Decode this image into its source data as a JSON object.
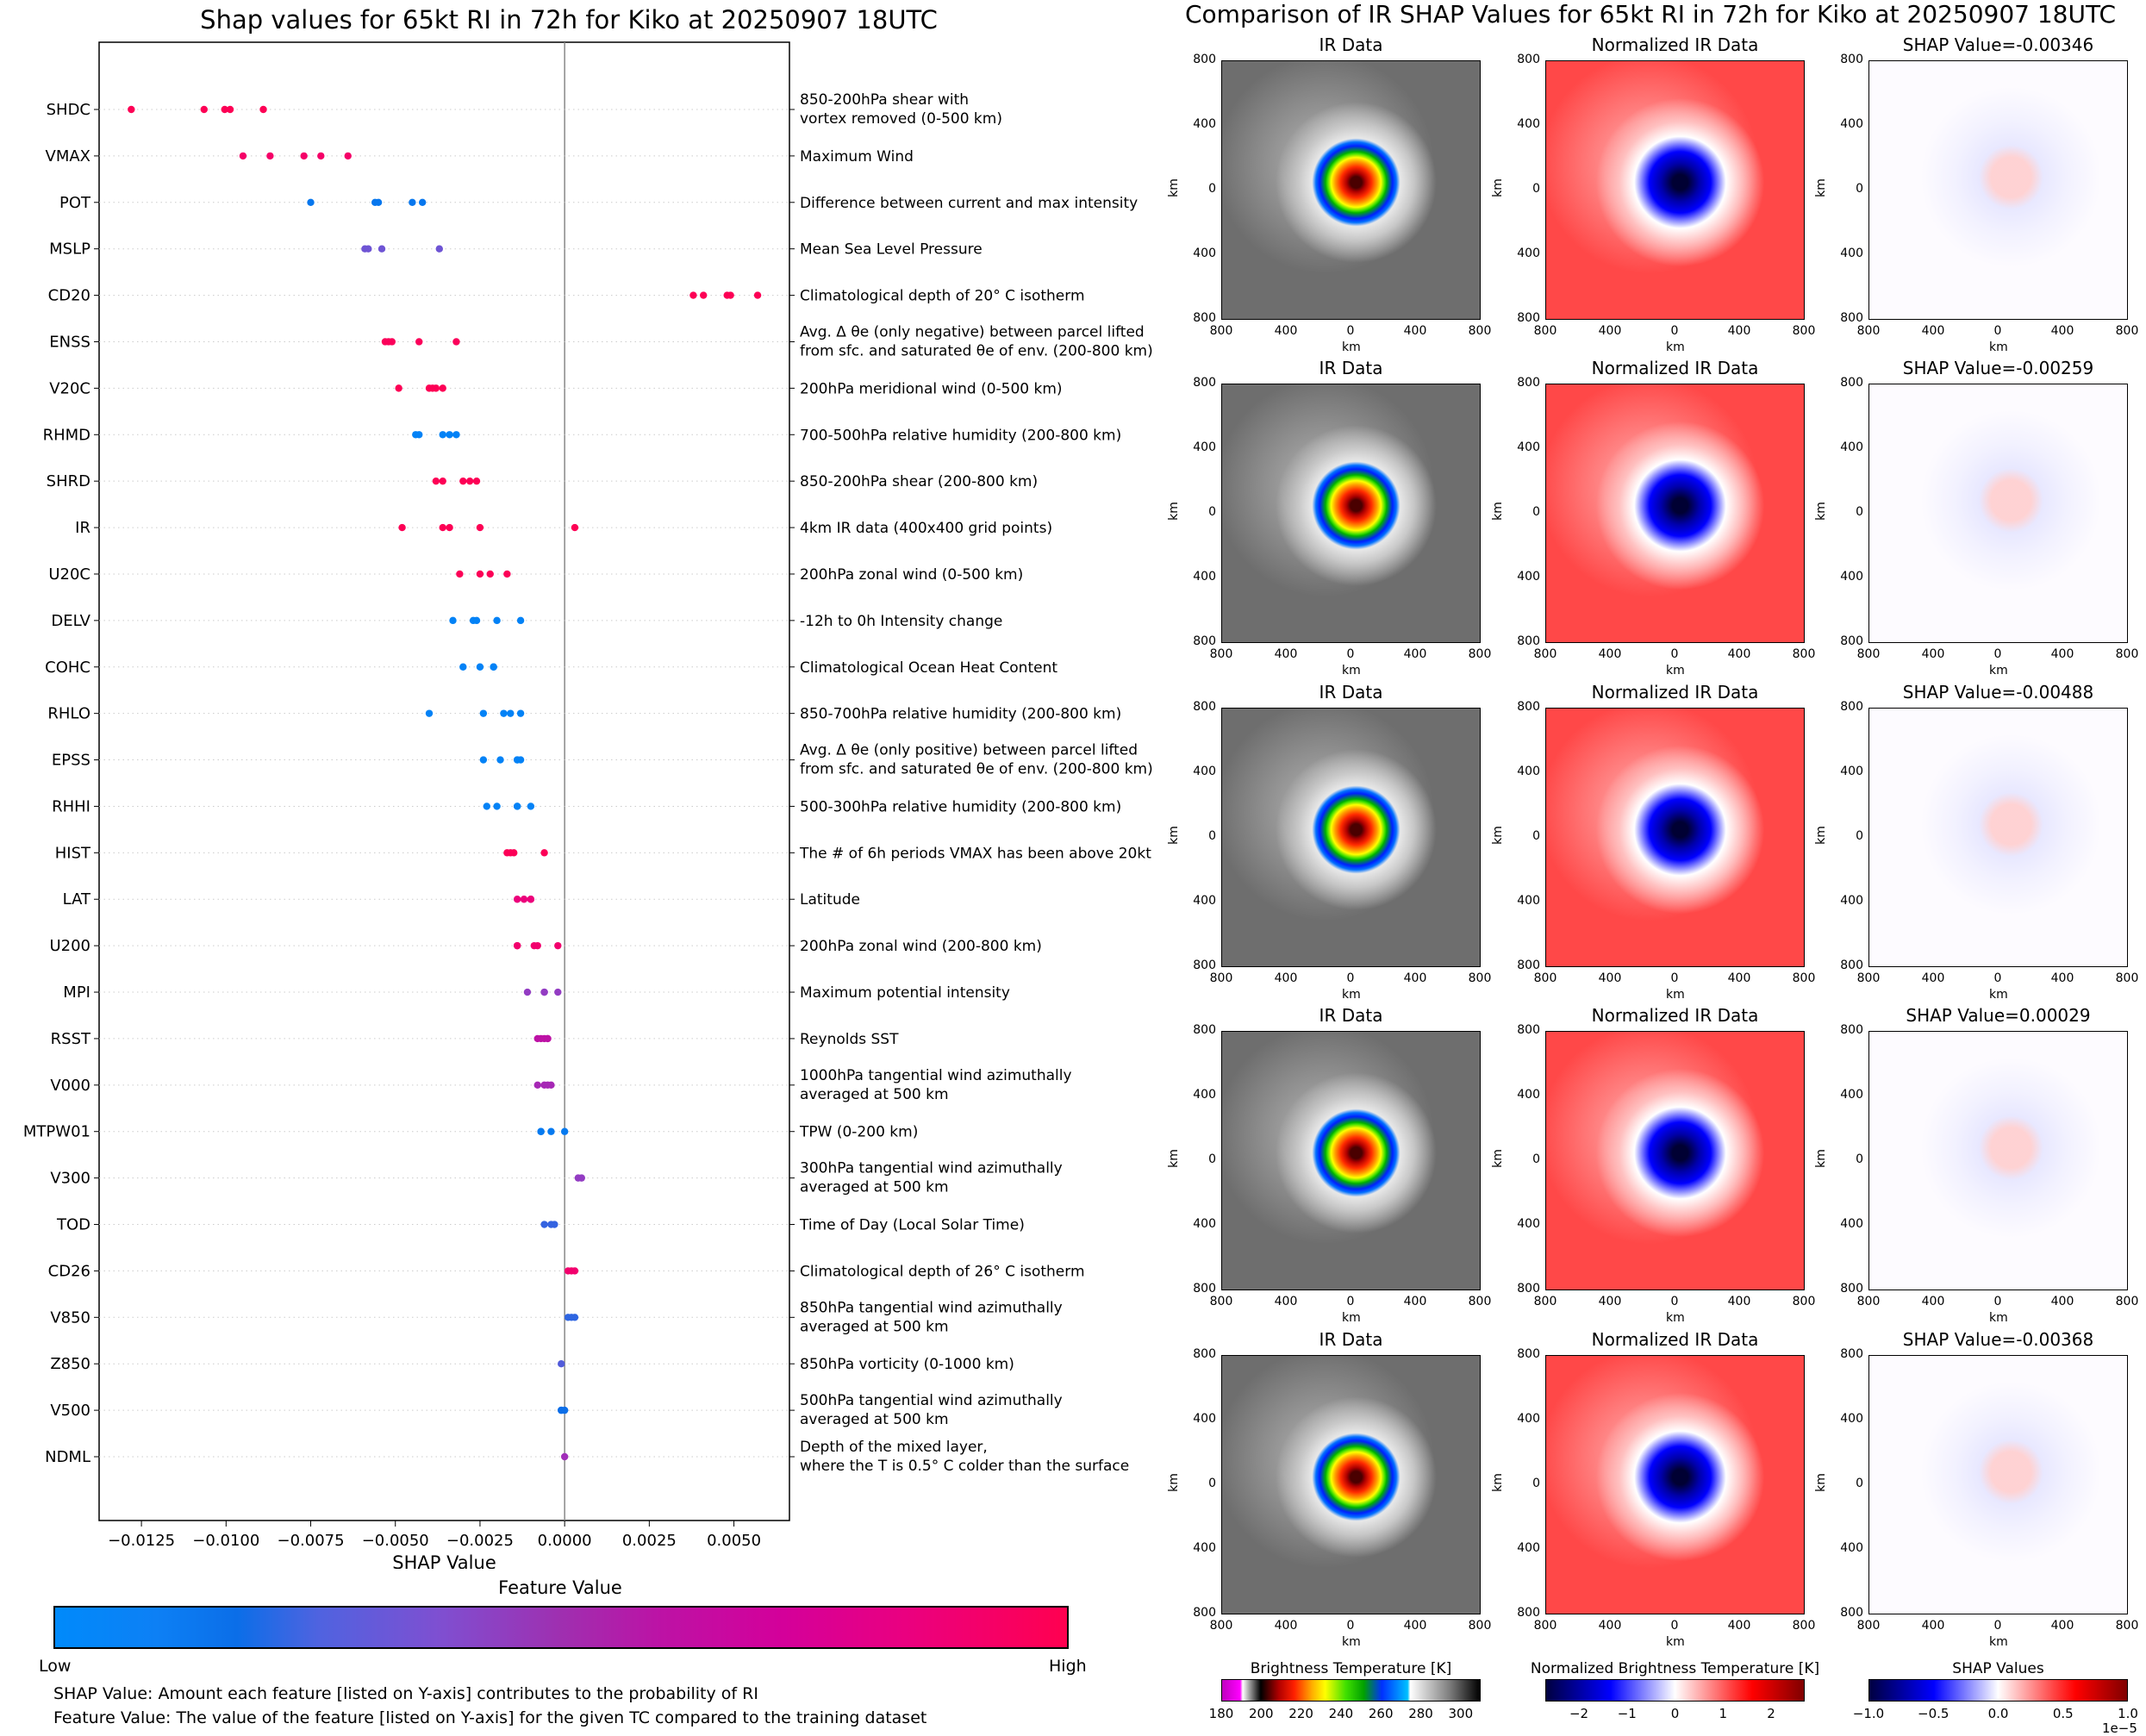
{
  "left_title": "Shap values for 65kt RI in 72h for Kiko at 20250907 18UTC",
  "right_title": "Comparison of IR SHAP Values for 65kt RI in 72h for Kiko at 20250907 18UTC",
  "feature_value_label": "Feature Value",
  "feature_value_low": "Low",
  "feature_value_high": "High",
  "notes": [
    "SHAP Value: Amount each feature [listed on Y-axis] contributes to the probability of RI",
    "Feature Value: The value of the feature [listed on Y-axis] for the given TC compared to the training dataset"
  ],
  "colors": {
    "low": "#008afb",
    "high": "#ff0050",
    "zero_line": "#888888"
  },
  "chart_data": [
    {
      "type": "scatter",
      "subtype": "beeswarm",
      "title": "Shap values for 65kt RI in 72h for Kiko at 20250907 18UTC",
      "xlabel": "SHAP Value",
      "ylabel": "",
      "xlim": [
        -0.01375,
        0.00664
      ],
      "xticks": [
        -0.0125,
        -0.01,
        -0.0075,
        -0.005,
        -0.0025,
        0.0,
        0.0025,
        0.005
      ],
      "xtick_labels": [
        "−0.0125",
        "−0.0100",
        "−0.0075",
        "−0.0050",
        "−0.0025",
        "0.0000",
        "0.0025",
        "0.0050"
      ],
      "grid": "horizontal dotted",
      "colorbar": {
        "label": "Feature Value",
        "low": "Low",
        "high": "High"
      },
      "features": [
        {
          "name": "SHDC",
          "description": "850-200hPa shear with\nvortex removed (0-500 km)",
          "feature_value": 0.98,
          "values": [
            -0.0128,
            -0.01065,
            -0.01004,
            -0.00988,
            -0.0089
          ]
        },
        {
          "name": "VMAX",
          "description": "Maximum Wind",
          "feature_value": 0.9,
          "values": [
            -0.0095,
            -0.0087,
            -0.0077,
            -0.0072,
            -0.0064
          ]
        },
        {
          "name": "POT",
          "description": "Difference between current and max intensity",
          "feature_value": 0.12,
          "values": [
            -0.0075,
            -0.0056,
            -0.0055,
            -0.0045,
            -0.0042
          ]
        },
        {
          "name": "MSLP",
          "description": "Mean Sea Level Pressure",
          "feature_value": 0.35,
          "values": [
            -0.0059,
            -0.0058,
            -0.0054,
            -0.0037
          ]
        },
        {
          "name": "CD20",
          "description": "Climatological depth of 20° C isotherm",
          "feature_value": 0.98,
          "values": [
            0.0038,
            0.0041,
            0.0048,
            0.0049,
            0.0057
          ]
        },
        {
          "name": "ENSS",
          "description": "Avg. Δ θe (only negative) between parcel lifted\nfrom sfc. and saturated θe of env. (200-800 km)",
          "feature_value": 0.96,
          "values": [
            -0.0053,
            -0.0052,
            -0.0051,
            -0.0043,
            -0.0032
          ]
        },
        {
          "name": "V20C",
          "description": "200hPa meridional wind (0-500 km)",
          "feature_value": 0.98,
          "values": [
            -0.0049,
            -0.004,
            -0.0039,
            -0.0038,
            -0.0036
          ]
        },
        {
          "name": "RHMD",
          "description": "700-500hPa relative humidity (200-800 km)",
          "feature_value": 0.05,
          "values": [
            -0.0044,
            -0.0043,
            -0.0036,
            -0.0034,
            -0.0032
          ]
        },
        {
          "name": "SHRD",
          "description": "850-200hPa shear (200-800 km)",
          "feature_value": 0.98,
          "values": [
            -0.0038,
            -0.0036,
            -0.003,
            -0.0028,
            -0.0026
          ]
        },
        {
          "name": "IR",
          "description": "4km IR data (400x400 grid points)",
          "feature_value": 0.98,
          "values": [
            -0.0048,
            -0.0036,
            -0.0034,
            -0.0025,
            0.0003
          ]
        },
        {
          "name": "U20C",
          "description": "200hPa zonal wind (0-500 km)",
          "feature_value": 0.97,
          "values": [
            -0.0031,
            -0.0025,
            -0.0022,
            -0.0017
          ]
        },
        {
          "name": "DELV",
          "description": "-12h to 0h Intensity change",
          "feature_value": 0.05,
          "values": [
            -0.0033,
            -0.0027,
            -0.0026,
            -0.002,
            -0.0013
          ]
        },
        {
          "name": "COHC",
          "description": "Climatological Ocean Heat Content",
          "feature_value": 0.05,
          "values": [
            -0.003,
            -0.0025,
            -0.0021,
            -0.0021
          ]
        },
        {
          "name": "RHLO",
          "description": "850-700hPa relative humidity (200-800 km)",
          "feature_value": 0.05,
          "values": [
            -0.004,
            -0.0024,
            -0.0018,
            -0.0016,
            -0.0013
          ]
        },
        {
          "name": "EPSS",
          "description": "Avg. Δ θe (only positive) between parcel lifted\nfrom sfc. and saturated θe of env. (200-800 km)",
          "feature_value": 0.05,
          "values": [
            -0.0024,
            -0.0019,
            -0.0014,
            -0.0014,
            -0.0013
          ]
        },
        {
          "name": "RHHI",
          "description": "500-300hPa relative humidity (200-800 km)",
          "feature_value": 0.05,
          "values": [
            -0.0023,
            -0.002,
            -0.0014,
            -0.0014,
            -0.001
          ]
        },
        {
          "name": "HIST",
          "description": "The # of 6h periods VMAX has been above 20kt",
          "feature_value": 0.97,
          "values": [
            -0.0017,
            -0.0016,
            -0.0015,
            -0.0006
          ]
        },
        {
          "name": "LAT",
          "description": "Latitude",
          "feature_value": 0.82,
          "values": [
            -0.0014,
            -0.0012,
            -0.001,
            -0.001
          ]
        },
        {
          "name": "U200",
          "description": "200hPa zonal wind (200-800 km)",
          "feature_value": 0.88,
          "values": [
            -0.0014,
            -0.0014,
            -0.0009,
            -0.0008,
            -0.0002
          ]
        },
        {
          "name": "MPI",
          "description": "Maximum potential intensity",
          "feature_value": 0.45,
          "values": [
            -0.0011,
            -0.0006,
            -0.0006,
            -0.0002
          ]
        },
        {
          "name": "RSST",
          "description": "Reynolds SST",
          "feature_value": 0.6,
          "values": [
            -0.0008,
            -0.0007,
            -0.0006,
            -0.0005,
            -0.0005
          ]
        },
        {
          "name": "V000",
          "description": "1000hPa tangential wind azimuthally\naveraged at 500 km",
          "feature_value": 0.52,
          "values": [
            -0.0008,
            -0.0006,
            -0.0005,
            -0.0004
          ]
        },
        {
          "name": "MTPW01",
          "description": "TPW (0-200 km)",
          "feature_value": 0.1,
          "values": [
            -0.0007,
            -0.0007,
            -0.0004,
            0.0
          ]
        },
        {
          "name": "V300",
          "description": "300hPa tangential wind azimuthally\naveraged at 500 km",
          "feature_value": 0.45,
          "values": [
            0.0004,
            0.0005
          ]
        },
        {
          "name": "TOD",
          "description": "Time of Day (Local Solar Time)",
          "feature_value": 0.25,
          "values": [
            -0.0006,
            -0.0004,
            -0.0003
          ]
        },
        {
          "name": "CD26",
          "description": "Climatological depth of 26° C isotherm",
          "feature_value": 0.88,
          "values": [
            0.0001,
            0.0002,
            0.0003
          ]
        },
        {
          "name": "V850",
          "description": "850hPa tangential wind azimuthally\naveraged at 500 km",
          "feature_value": 0.24,
          "values": [
            0.0001,
            0.0002,
            0.0003
          ]
        },
        {
          "name": "Z850",
          "description": "850hPa vorticity (0-1000 km)",
          "feature_value": 0.3,
          "values": [
            -0.0001
          ]
        },
        {
          "name": "V500",
          "description": "500hPa tangential wind azimuthally\naveraged at 500 km",
          "feature_value": 0.18,
          "values": [
            -0.0001,
            -0.0001,
            0.0
          ]
        },
        {
          "name": "NDML",
          "description": "Depth of the mixed layer,\nwhere the T is 0.5° C colder than the surface",
          "feature_value": 0.5,
          "values": [
            0.0
          ]
        }
      ]
    },
    {
      "type": "heatmap",
      "title": "Comparison of IR SHAP Values for 65kt RI in 72h for Kiko at 20250907 18UTC",
      "rows": [
        {
          "ir_title": "IR Data",
          "nir_title": "Normalized IR Data",
          "shap_title": "SHAP Value=-0.00346"
        },
        {
          "ir_title": "IR Data",
          "nir_title": "Normalized IR Data",
          "shap_title": "SHAP Value=-0.00259"
        },
        {
          "ir_title": "IR Data",
          "nir_title": "Normalized IR Data",
          "shap_title": "SHAP Value=-0.00488"
        },
        {
          "ir_title": "IR Data",
          "nir_title": "Normalized IR Data",
          "shap_title": "SHAP Value=0.00029"
        },
        {
          "ir_title": "IR Data",
          "nir_title": "Normalized IR Data",
          "shap_title": "SHAP Value=-0.00368"
        }
      ],
      "axis_ticks": [
        "800",
        "400",
        "0",
        "400",
        "800"
      ],
      "xlabel": "km",
      "ylabel": "km",
      "colorbars": [
        {
          "label": "Brightness Temperature [K]",
          "ticks": [
            "180",
            "200",
            "220",
            "240",
            "260",
            "280",
            "300"
          ],
          "range": [
            180,
            310
          ]
        },
        {
          "label": "Normalized Brightness Temperature [K]",
          "ticks": [
            "−2",
            "−1",
            "0",
            "1",
            "2"
          ],
          "range": [
            -2.7,
            2.7
          ]
        },
        {
          "label": "SHAP Values",
          "ticks": [
            "−1.0",
            "−0.5",
            "0.0",
            "0.5",
            "1.0"
          ],
          "range": [
            -1.0,
            1.0
          ],
          "offset_text": "1e−5"
        }
      ]
    }
  ]
}
